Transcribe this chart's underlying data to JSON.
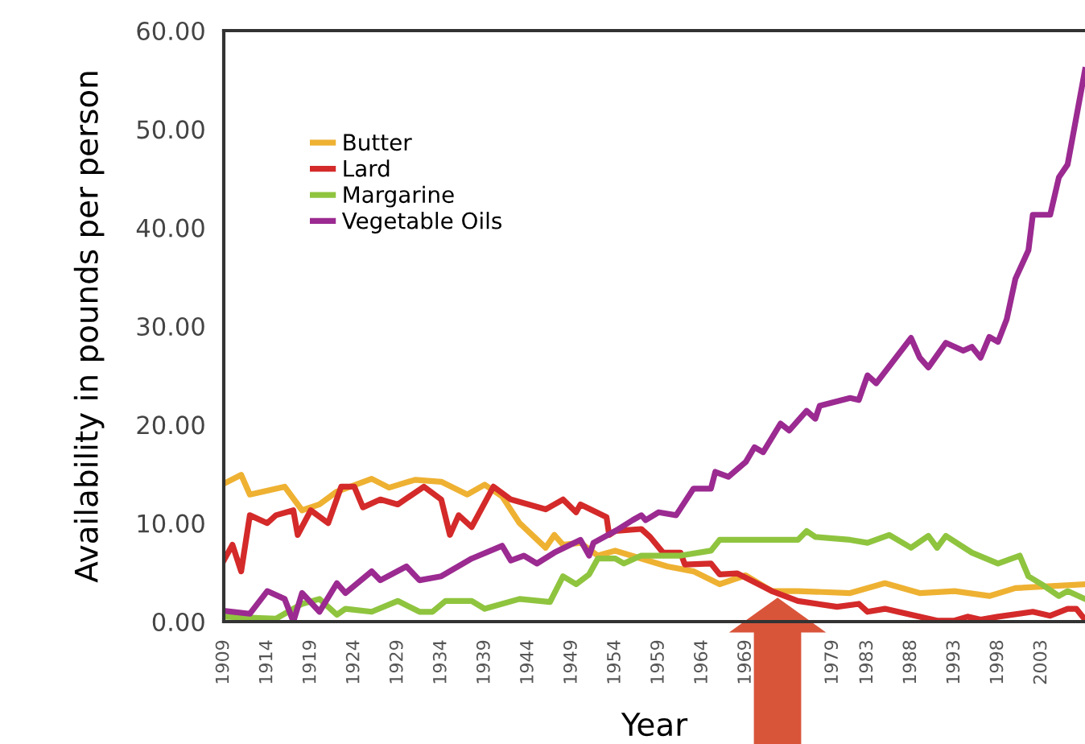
{
  "chart_data": {
    "type": "line",
    "xlabel": "Year",
    "ylabel": "Availability in pounds per person",
    "xlim": [
      1909,
      2008
    ],
    "ylim": [
      0,
      60
    ],
    "xticks": [
      1909,
      1914,
      1919,
      1924,
      1929,
      1934,
      1939,
      1944,
      1949,
      1954,
      1959,
      1964,
      1969,
      1979,
      1983,
      1988,
      1993,
      1998,
      2003
    ],
    "yticks": [
      {
        "value": 0,
        "label": "0.00"
      },
      {
        "value": 10,
        "label": "10.00"
      },
      {
        "value": 20,
        "label": "20.00"
      },
      {
        "value": 30,
        "label": "30.00"
      },
      {
        "value": 40,
        "label": "40.00"
      },
      {
        "value": 50,
        "label": "50.00"
      },
      {
        "value": 60,
        "label": "60.00"
      }
    ],
    "grid": false,
    "legend": "top left",
    "marker": "none",
    "line_style": "solid",
    "series": [
      {
        "name": "Butter",
        "color": "#eeb132",
        "x": [
          1909,
          1911,
          1912,
          1916,
          1918,
          1920,
          1922,
          1926,
          1928,
          1931,
          1934,
          1937,
          1939,
          1941,
          1943,
          1946,
          1947,
          1948,
          1950,
          1952,
          1954,
          1957,
          1960,
          1963,
          1966,
          1969,
          1972,
          1975,
          1981,
          1985,
          1989,
          1993,
          1997,
          2000,
          2008
        ],
        "values": [
          14.0,
          14.9,
          12.9,
          13.7,
          11.3,
          11.9,
          13.2,
          14.5,
          13.6,
          14.4,
          14.2,
          12.9,
          13.9,
          12.7,
          10.0,
          7.5,
          8.8,
          7.8,
          8.0,
          6.7,
          7.2,
          6.4,
          5.6,
          5.1,
          3.8,
          4.7,
          3.1,
          3.1,
          2.9,
          3.9,
          2.9,
          3.1,
          2.6,
          3.4,
          3.8
        ]
      },
      {
        "name": "Lard",
        "color": "#d42a2a",
        "x": [
          1909,
          1910,
          1911,
          1912,
          1914,
          1915,
          1917,
          1917.5,
          1919,
          1921,
          1922.5,
          1924,
          1925,
          1927,
          1929,
          1932,
          1934,
          1935,
          1936,
          1937.5,
          1940,
          1942,
          1946,
          1948,
          1949.5,
          1950,
          1953,
          1953.3,
          1954,
          1957,
          1958,
          1959.5,
          1961.5,
          1962,
          1965,
          1966,
          1968,
          1972,
          1975,
          1979.5,
          1982,
          1983,
          1985,
          1991,
          1993,
          1994.5,
          1996,
          1998,
          2002,
          2004,
          2006,
          2007,
          2008
        ],
        "values": [
          6.2,
          7.8,
          5.1,
          10.8,
          10.0,
          10.8,
          11.3,
          8.8,
          11.3,
          10.0,
          13.7,
          13.7,
          11.6,
          12.4,
          11.9,
          13.7,
          12.4,
          8.8,
          10.8,
          9.6,
          13.7,
          12.4,
          11.4,
          12.4,
          11.1,
          11.9,
          10.6,
          8.8,
          9.2,
          9.4,
          8.6,
          7.0,
          7.0,
          5.8,
          5.9,
          4.8,
          4.9,
          3.1,
          2.1,
          1.5,
          1.8,
          1.0,
          1.3,
          0.1,
          0.1,
          0.5,
          0.2,
          0.5,
          1.0,
          0.6,
          1.3,
          1.3,
          0.2
        ]
      },
      {
        "name": "Margarine",
        "color": "#8fc43f",
        "x": [
          1909,
          1915,
          1918,
          1920,
          1922,
          1923,
          1926,
          1929,
          1931.5,
          1933,
          1934.5,
          1937.5,
          1939,
          1943,
          1946.5,
          1948,
          1949.5,
          1951,
          1952,
          1954,
          1955,
          1957,
          1961.5,
          1965,
          1966,
          1975,
          1976,
          1977,
          1981,
          1983,
          1985.5,
          1988,
          1990,
          1991,
          1992,
          1995,
          1998,
          2000.5,
          2001.5,
          2003,
          2005,
          2006,
          2008
        ],
        "values": [
          0.5,
          0.3,
          1.8,
          2.3,
          0.7,
          1.3,
          1.0,
          2.1,
          1.0,
          1.0,
          2.1,
          2.1,
          1.3,
          2.3,
          2.0,
          4.6,
          3.8,
          4.8,
          6.4,
          6.4,
          5.9,
          6.7,
          6.7,
          7.2,
          8.3,
          8.3,
          9.2,
          8.6,
          8.3,
          8.0,
          8.8,
          7.5,
          8.7,
          7.5,
          8.7,
          7.0,
          5.9,
          6.7,
          4.6,
          3.8,
          2.6,
          3.1,
          2.3
        ]
      },
      {
        "name": "Vegetable Oils",
        "color": "#9b2a91",
        "x": [
          1909,
          1912,
          1914,
          1916,
          1917,
          1918,
          1920,
          1922,
          1923,
          1926,
          1927,
          1930,
          1931.5,
          1934,
          1937.5,
          1941,
          1942,
          1943.5,
          1945,
          1947,
          1950,
          1951,
          1951.5,
          1954,
          1956,
          1957,
          1957.5,
          1959,
          1961,
          1963,
          1965,
          1965.5,
          1967,
          1969,
          1970,
          1971,
          1973,
          1974,
          1976,
          1977,
          1977.5,
          1981,
          1982,
          1983,
          1984,
          1988,
          1989,
          1990,
          1992,
          1994,
          1995,
          1996,
          1997,
          1998,
          1999,
          2000,
          2001.5,
          2002,
          2004,
          2005,
          2006,
          2008
        ],
        "values": [
          1.1,
          0.8,
          3.1,
          2.3,
          0.0,
          2.9,
          1.0,
          3.9,
          2.9,
          5.1,
          4.2,
          5.6,
          4.2,
          4.6,
          6.4,
          7.7,
          6.2,
          6.7,
          5.9,
          7.0,
          8.3,
          6.7,
          8.0,
          9.2,
          10.3,
          10.8,
          10.3,
          11.1,
          10.8,
          13.5,
          13.5,
          15.2,
          14.7,
          16.2,
          17.7,
          17.2,
          20.1,
          19.4,
          21.4,
          20.6,
          21.9,
          22.7,
          22.5,
          25.0,
          24.2,
          28.8,
          26.8,
          25.8,
          28.3,
          27.5,
          27.9,
          26.8,
          28.9,
          28.4,
          30.7,
          34.8,
          37.7,
          41.3,
          41.3,
          45.1,
          46.4,
          56.0
        ]
      }
    ]
  }
}
